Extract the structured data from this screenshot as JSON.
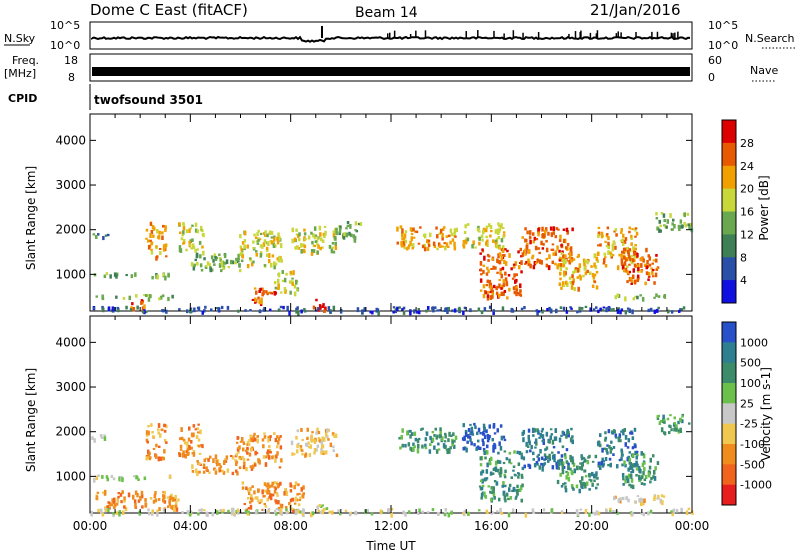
{
  "header": {
    "title": "Dome C East (fitACF)",
    "beam": "Beam 14",
    "date": "21/Jan/2016"
  },
  "strips": {
    "nsky_label": "N.Sky",
    "nsky_ticks": [
      "10^5",
      "10^0"
    ],
    "nsearch_label": "N.Search",
    "nsearch_ticks": [
      "10^5",
      "10^0"
    ],
    "freq_label_1": "Freq.",
    "freq_label_2": "[MHz]",
    "freq_ticks": [
      "18",
      "8"
    ],
    "nave_label": "Nave",
    "nave_ticks": [
      "60",
      "0"
    ],
    "cpid_label": "CPID",
    "cpid_text": "twofsound 3501"
  },
  "chart_data": [
    {
      "type": "heatmap",
      "name": "power-panel",
      "xlabel": "",
      "ylabel": "Slant Range [km]",
      "xlim": [
        0,
        24
      ],
      "ylim": [
        180,
        4590
      ],
      "yticks": [
        1000,
        2000,
        3000,
        4000
      ],
      "colorbar_label": "Power [dB]",
      "colorbar_ticks": [
        "4",
        "8",
        "12",
        "16",
        "20",
        "24",
        "28"
      ],
      "colorbar_colors": [
        "#1010e0",
        "#2a4fa8",
        "#3f7f55",
        "#6aa84f",
        "#c8d83a",
        "#f0a000",
        "#e85a00",
        "#dd0000"
      ],
      "echo_patches": [
        {
          "t0": 0.0,
          "t1": 1.0,
          "r0": 1850,
          "r1": 1950,
          "level": 2
        },
        {
          "t0": 0.1,
          "t1": 3.2,
          "r0": 950,
          "r1": 1050,
          "level": 3
        },
        {
          "t0": 0.2,
          "t1": 3.8,
          "r0": 480,
          "r1": 560,
          "level": 3
        },
        {
          "t0": 1.5,
          "t1": 2.2,
          "r0": 250,
          "r1": 450,
          "level": 6
        },
        {
          "t0": 2.2,
          "t1": 3.0,
          "r0": 1400,
          "r1": 2200,
          "level": 5
        },
        {
          "t0": 3.5,
          "t1": 4.5,
          "r0": 1500,
          "r1": 2200,
          "level": 4
        },
        {
          "t0": 4.0,
          "t1": 6.0,
          "r0": 1100,
          "r1": 1500,
          "level": 3
        },
        {
          "t0": 5.8,
          "t1": 7.6,
          "r0": 1200,
          "r1": 2000,
          "level": 4
        },
        {
          "t0": 6.4,
          "t1": 7.4,
          "r0": 350,
          "r1": 750,
          "level": 6
        },
        {
          "t0": 7.3,
          "t1": 8.3,
          "r0": 600,
          "r1": 1100,
          "level": 4
        },
        {
          "t0": 8.0,
          "t1": 9.8,
          "r0": 1500,
          "r1": 2100,
          "level": 4
        },
        {
          "t0": 8.8,
          "t1": 9.4,
          "r0": 180,
          "r1": 480,
          "level": 7
        },
        {
          "t0": 9.6,
          "t1": 10.8,
          "r0": 1800,
          "r1": 2200,
          "level": 3
        },
        {
          "t0": 12.2,
          "t1": 14.6,
          "r0": 1600,
          "r1": 2100,
          "level": 5
        },
        {
          "t0": 14.8,
          "t1": 16.5,
          "r0": 1600,
          "r1": 2200,
          "level": 4
        },
        {
          "t0": 15.5,
          "t1": 17.2,
          "r0": 500,
          "r1": 1600,
          "level": 6
        },
        {
          "t0": 17.2,
          "t1": 19.2,
          "r0": 1200,
          "r1": 2100,
          "level": 6
        },
        {
          "t0": 18.6,
          "t1": 20.2,
          "r0": 700,
          "r1": 1500,
          "level": 5
        },
        {
          "t0": 20.2,
          "t1": 21.8,
          "r0": 1200,
          "r1": 2100,
          "level": 5
        },
        {
          "t0": 21.2,
          "t1": 22.6,
          "r0": 800,
          "r1": 1600,
          "level": 6
        },
        {
          "t0": 20.8,
          "t1": 23.0,
          "r0": 480,
          "r1": 580,
          "level": 3
        },
        {
          "t0": 22.5,
          "t1": 24.0,
          "r0": 2000,
          "r1": 2400,
          "level": 3
        },
        {
          "t0": 0.0,
          "t1": 24.0,
          "r0": 180,
          "r1": 300,
          "level": 1
        }
      ]
    },
    {
      "type": "heatmap",
      "name": "velocity-panel",
      "xlabel": "Time UT",
      "ylabel": "Slant Range [km]",
      "xlim": [
        0,
        24
      ],
      "ylim": [
        180,
        4590
      ],
      "yticks": [
        1000,
        2000,
        3000,
        4000
      ],
      "xticks": [
        "00:00",
        "04:00",
        "08:00",
        "12:00",
        "16:00",
        "20:00",
        "00:00"
      ],
      "colorbar_label": "Velocity [m s-1]",
      "colorbar_ticks": [
        "1000",
        "500",
        "100",
        "25",
        "-25",
        "-100",
        "-500",
        "-1000"
      ],
      "colorbar_colors": [
        "#2850c8",
        "#2e7f8f",
        "#3c8c6b",
        "#6ac04a",
        "#c8c8c8",
        "#f0c850",
        "#f08c1e",
        "#f0641e",
        "#e81e1e"
      ],
      "echo_patches": [
        {
          "t0": 0.0,
          "t1": 1.0,
          "r0": 1850,
          "r1": 1950,
          "level": 4
        },
        {
          "t0": 0.1,
          "t1": 3.2,
          "r0": 950,
          "r1": 1050,
          "level": 4
        },
        {
          "t0": 0.2,
          "t1": 3.5,
          "r0": 300,
          "r1": 700,
          "level": 6
        },
        {
          "t0": 2.2,
          "t1": 3.0,
          "r0": 1400,
          "r1": 2200,
          "level": 6
        },
        {
          "t0": 3.5,
          "t1": 4.5,
          "r0": 1500,
          "r1": 2200,
          "level": 6
        },
        {
          "t0": 4.0,
          "t1": 6.0,
          "r0": 1100,
          "r1": 1500,
          "level": 6
        },
        {
          "t0": 5.8,
          "t1": 7.6,
          "r0": 1200,
          "r1": 2000,
          "level": 6
        },
        {
          "t0": 6.0,
          "t1": 8.5,
          "r0": 250,
          "r1": 900,
          "level": 6
        },
        {
          "t0": 8.0,
          "t1": 9.8,
          "r0": 1500,
          "r1": 2100,
          "level": 5
        },
        {
          "t0": 8.8,
          "t1": 9.4,
          "r0": 180,
          "r1": 480,
          "level": 4
        },
        {
          "t0": 12.2,
          "t1": 14.6,
          "r0": 1600,
          "r1": 2100,
          "level": 2
        },
        {
          "t0": 14.8,
          "t1": 16.5,
          "r0": 1600,
          "r1": 2200,
          "level": 0
        },
        {
          "t0": 15.5,
          "t1": 17.2,
          "r0": 500,
          "r1": 1600,
          "level": 2
        },
        {
          "t0": 17.2,
          "t1": 19.2,
          "r0": 1200,
          "r1": 2100,
          "level": 1
        },
        {
          "t0": 18.6,
          "t1": 20.2,
          "r0": 700,
          "r1": 1500,
          "level": 2
        },
        {
          "t0": 20.2,
          "t1": 21.8,
          "r0": 1200,
          "r1": 2100,
          "level": 1
        },
        {
          "t0": 21.2,
          "t1": 22.6,
          "r0": 800,
          "r1": 1600,
          "level": 2
        },
        {
          "t0": 20.8,
          "t1": 23.0,
          "r0": 400,
          "r1": 600,
          "level": 5
        },
        {
          "t0": 22.5,
          "t1": 24.0,
          "r0": 2000,
          "r1": 2400,
          "level": 2
        },
        {
          "t0": 0.0,
          "t1": 24.0,
          "r0": 180,
          "r1": 300,
          "level": 4
        }
      ]
    }
  ]
}
